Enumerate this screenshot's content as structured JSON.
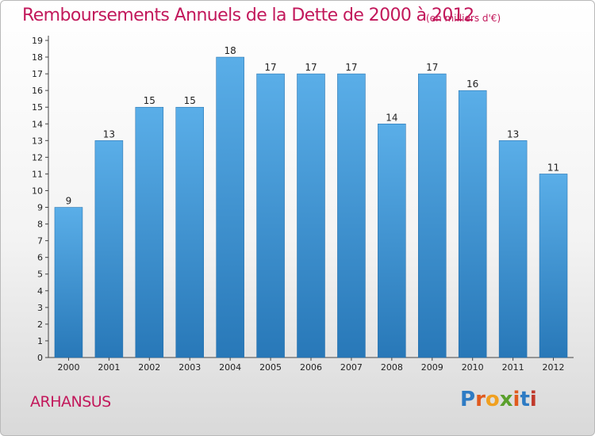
{
  "header": {
    "title": "Remboursements Annuels de la Dette de 2000 à 2012",
    "unit": "(en milliers d'€)"
  },
  "footer": {
    "commune": "ARHANSUS",
    "logo_text": "Proxiti"
  },
  "colors": {
    "title": "#c2185b",
    "bar_top": "#5aaee8",
    "bar_bottom": "#2878b8",
    "logo": [
      "#2e7bc4",
      "#e05a1e",
      "#f0a020",
      "#5aa02c",
      "#e05a1e",
      "#2e7bc4",
      "#c0392b"
    ]
  },
  "chart_data": {
    "type": "bar",
    "categories": [
      "2000",
      "2001",
      "2002",
      "2003",
      "2004",
      "2005",
      "2006",
      "2007",
      "2008",
      "2009",
      "2010",
      "2011",
      "2012"
    ],
    "values": [
      9,
      13,
      15,
      15,
      18,
      17,
      17,
      17,
      14,
      17,
      16,
      13,
      11
    ],
    "ylim": [
      0,
      19
    ],
    "yticks": [
      0,
      1,
      2,
      3,
      4,
      5,
      6,
      7,
      8,
      9,
      10,
      11,
      12,
      13,
      14,
      15,
      16,
      17,
      18,
      19
    ],
    "title": "Remboursements Annuels de la Dette de 2000 à 2012",
    "xlabel": "",
    "ylabel": "",
    "grid": false,
    "data_labels": true
  }
}
